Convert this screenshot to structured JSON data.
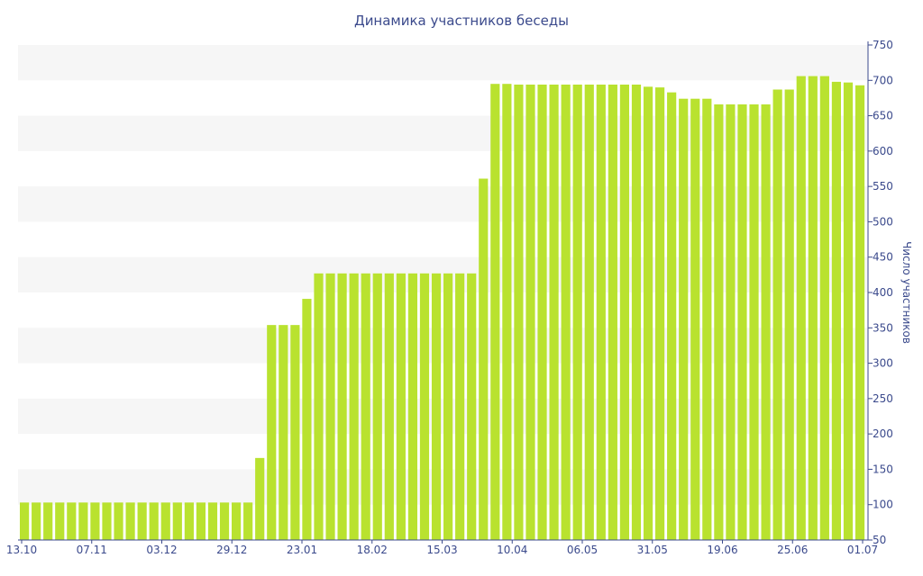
{
  "chart_data": {
    "type": "bar",
    "title": "Динамика участников беседы",
    "xlabel": "",
    "ylabel": "Число участников",
    "ylim": [
      50,
      750
    ],
    "yticks": [
      50,
      100,
      150,
      200,
      250,
      300,
      350,
      400,
      450,
      500,
      550,
      600,
      650,
      700,
      750
    ],
    "y_axis_side": "right",
    "grid": "alternating horizontal bands",
    "x_tick_labels": [
      "13.10",
      "07.11",
      "03.12",
      "29.12",
      "23.01",
      "18.02",
      "15.03",
      "10.04",
      "06.05",
      "31.05",
      "19.06",
      "25.06",
      "01.07"
    ],
    "colors": {
      "bar": "#b9e22f",
      "band": "#f6f6f6",
      "text": "#3b4a8c",
      "axis": "#3b4a8c"
    },
    "series": [
      {
        "values": [
          103,
          103,
          103,
          103,
          103,
          103,
          103,
          103,
          103,
          103,
          103,
          103,
          103,
          103,
          103,
          103,
          103,
          103,
          103,
          103,
          166,
          354,
          354,
          354,
          391,
          427,
          427,
          427,
          427,
          427,
          427,
          427,
          427,
          427,
          427,
          427,
          427,
          427,
          427,
          561,
          695,
          695,
          694,
          694,
          694,
          694,
          694,
          694,
          694,
          694,
          694,
          694,
          694,
          691,
          690,
          683,
          674,
          674,
          674,
          666,
          666,
          666,
          666,
          666,
          687,
          687,
          706,
          706,
          706,
          698,
          697,
          693
        ]
      }
    ]
  }
}
